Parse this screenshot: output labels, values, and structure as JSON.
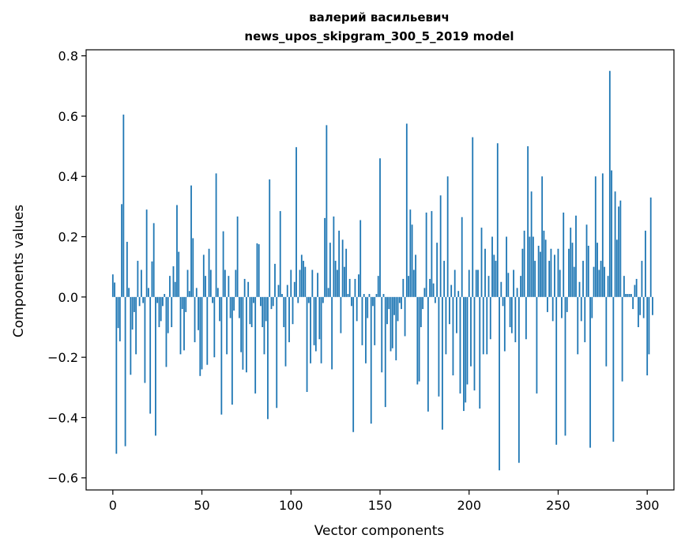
{
  "chart_data": {
    "type": "bar",
    "title_line1": "валерий васильевич",
    "title_line2": "news_upos_skipgram_300_5_2019 model",
    "xlabel": "Vector components",
    "ylabel": "Components values",
    "xlim": [
      -15,
      315
    ],
    "ylim": [
      -0.64,
      0.82
    ],
    "xticks": [
      0,
      50,
      100,
      150,
      200,
      250,
      300
    ],
    "xtick_labels": [
      "0",
      "50",
      "100",
      "150",
      "200",
      "250",
      "300"
    ],
    "yticks": [
      -0.6,
      -0.4,
      -0.2,
      0.0,
      0.2,
      0.4,
      0.6,
      0.8
    ],
    "ytick_labels": [
      "−0.6",
      "−0.4",
      "−0.2",
      "0.0",
      "0.2",
      "0.4",
      "0.6",
      "0.8"
    ],
    "bar_color": "#1f77b4",
    "values": [
      0.075,
      0.048,
      -0.52,
      -0.103,
      -0.147,
      0.308,
      0.605,
      -0.495,
      0.183,
      0.03,
      -0.258,
      -0.108,
      -0.05,
      -0.19,
      0.12,
      -0.03,
      0.09,
      -0.02,
      -0.285,
      0.29,
      0.03,
      -0.387,
      0.118,
      0.245,
      -0.46,
      -0.02,
      -0.1,
      -0.08,
      -0.03,
      0.01,
      -0.232,
      -0.12,
      0.07,
      -0.1,
      0.102,
      0.05,
      0.305,
      0.15,
      -0.19,
      -0.04,
      -0.177,
      -0.05,
      0.09,
      0.02,
      0.37,
      0.195,
      -0.15,
      0.03,
      -0.11,
      -0.262,
      -0.24,
      0.14,
      0.07,
      -0.225,
      0.16,
      0.09,
      -0.02,
      -0.2,
      0.41,
      0.03,
      -0.08,
      -0.39,
      0.218,
      0.09,
      -0.19,
      0.07,
      -0.07,
      -0.357,
      -0.045,
      0.09,
      0.267,
      -0.07,
      -0.183,
      -0.241,
      0.06,
      -0.25,
      0.05,
      -0.09,
      -0.1,
      -0.02,
      -0.32,
      0.178,
      0.175,
      -0.03,
      -0.1,
      -0.19,
      -0.08,
      -0.405,
      0.39,
      -0.04,
      -0.03,
      0.11,
      -0.368,
      0.04,
      0.285,
      0.01,
      -0.1,
      -0.23,
      0.04,
      -0.15,
      0.09,
      -0.09,
      0.05,
      0.497,
      -0.02,
      0.09,
      0.14,
      0.12,
      0.1,
      -0.315,
      -0.02,
      -0.22,
      0.09,
      -0.16,
      -0.18,
      0.08,
      -0.14,
      -0.22,
      -0.02,
      0.262,
      0.57,
      0.03,
      0.18,
      -0.24,
      0.267,
      0.12,
      0.09,
      0.22,
      -0.12,
      0.19,
      0.1,
      0.16,
      0.01,
      0.06,
      -0.03,
      -0.448,
      0.06,
      -0.08,
      0.075,
      0.255,
      -0.16,
      0.01,
      -0.22,
      -0.07,
      0.01,
      -0.42,
      -0.03,
      -0.16,
      0.01,
      0.07,
      0.46,
      -0.25,
      0.01,
      -0.365,
      -0.09,
      -0.04,
      -0.18,
      -0.17,
      -0.06,
      -0.21,
      -0.08,
      -0.02,
      -0.04,
      0.06,
      -0.13,
      0.575,
      0.07,
      0.29,
      0.24,
      0.09,
      0.14,
      -0.29,
      -0.28,
      -0.1,
      -0.04,
      0.03,
      0.28,
      -0.38,
      0.06,
      0.285,
      0.045,
      -0.02,
      0.18,
      -0.33,
      0.337,
      -0.44,
      0.12,
      -0.19,
      0.4,
      -0.09,
      0.04,
      -0.26,
      0.09,
      -0.12,
      0.02,
      -0.32,
      0.265,
      -0.378,
      -0.35,
      -0.29,
      0.09,
      -0.23,
      0.53,
      -0.31,
      0.09,
      0.09,
      -0.37,
      0.23,
      -0.19,
      0.16,
      -0.19,
      0.07,
      -0.14,
      0.2,
      0.14,
      0.12,
      0.51,
      -0.575,
      0.05,
      -0.03,
      -0.18,
      0.2,
      0.08,
      -0.1,
      -0.12,
      0.09,
      -0.15,
      0.03,
      -0.55,
      0.07,
      0.16,
      0.22,
      -0.14,
      0.5,
      0.2,
      0.35,
      0.2,
      0.12,
      -0.32,
      0.17,
      0.15,
      0.4,
      0.22,
      0.19,
      -0.05,
      0.12,
      0.16,
      -0.08,
      0.14,
      -0.49,
      0.16,
      0.09,
      -0.07,
      0.28,
      -0.46,
      -0.05,
      0.16,
      0.23,
      0.18,
      0.1,
      0.27,
      -0.19,
      0.05,
      -0.08,
      0.12,
      -0.15,
      0.24,
      0.17,
      -0.5,
      -0.07,
      0.1,
      0.4,
      0.18,
      0.09,
      0.12,
      0.41,
      0.1,
      -0.23,
      0.07,
      0.75,
      0.42,
      -0.48,
      0.35,
      0.19,
      0.3,
      0.32,
      -0.28,
      0.07,
      0.01,
      0.01,
      0.01,
      0.01,
      -0.04,
      0.04,
      0.06,
      -0.1,
      -0.06,
      0.12,
      -0.07,
      0.22,
      -0.26,
      -0.19,
      0.33,
      -0.06
    ]
  }
}
